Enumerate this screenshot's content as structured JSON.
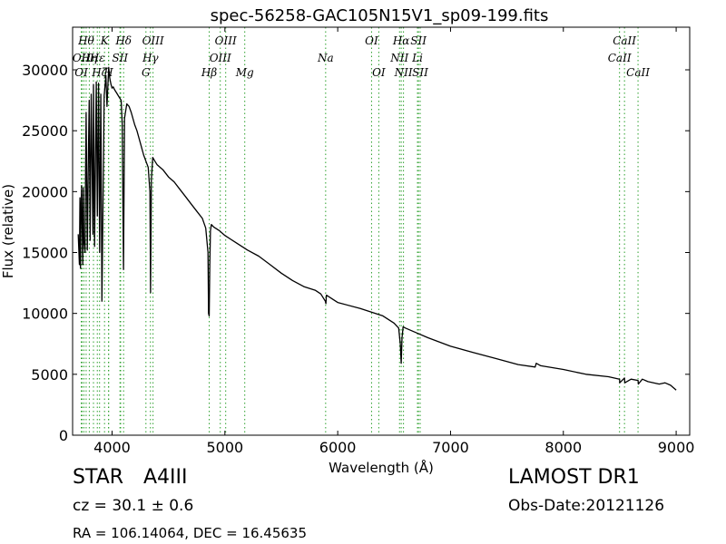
{
  "chart_data": {
    "type": "line",
    "title": "spec-56258-GAC105N15V1_sp09-199.fits",
    "xlabel": "Wavelength (Å)",
    "ylabel": "Flux (relative)",
    "xlim": [
      3650,
      9120
    ],
    "ylim": [
      0,
      33500
    ],
    "xticks": [
      4000,
      5000,
      6000,
      7000,
      8000,
      9000
    ],
    "yticks": [
      0,
      5000,
      10000,
      15000,
      20000,
      25000,
      30000
    ],
    "grid": false,
    "line_color": "#000000",
    "marker_color": "#2ca02c",
    "series": [
      {
        "x": [
          3700,
          3710,
          3715,
          3720,
          3725,
          3730,
          3740,
          3745,
          3750,
          3760,
          3765,
          3770,
          3780,
          3790,
          3797,
          3805,
          3815,
          3830,
          3835,
          3845,
          3860,
          3870,
          3880,
          3890,
          3900,
          3910,
          3930,
          3945,
          3955,
          3970,
          3980,
          3990,
          4000,
          4010,
          4020,
          4040,
          4060,
          4080,
          4090,
          4101,
          4110,
          4130,
          4150,
          4170,
          4200,
          4220,
          4250,
          4280,
          4300,
          4320,
          4335,
          4341,
          4348,
          4360,
          4380,
          4400,
          4450,
          4500,
          4550,
          4600,
          4650,
          4700,
          4750,
          4800,
          4830,
          4850,
          4855,
          4861,
          4866,
          4872,
          4880,
          4900,
          4950,
          5000,
          5100,
          5200,
          5300,
          5400,
          5500,
          5600,
          5700,
          5800,
          5850,
          5890,
          5895,
          5900,
          5950,
          6000,
          6200,
          6400,
          6500,
          6540,
          6555,
          6563,
          6570,
          6580,
          6600,
          6700,
          6800,
          7000,
          7200,
          7400,
          7600,
          7750,
          7760,
          7800,
          8000,
          8200,
          8400,
          8498,
          8500,
          8542,
          8545,
          8600,
          8662,
          8665,
          8700,
          8750,
          8800,
          8850,
          8900,
          8950,
          9000
        ],
        "y": [
          16500,
          14000,
          19500,
          13700,
          18500,
          20500,
          14000,
          20300,
          16000,
          15000,
          21500,
          26500,
          15200,
          23000,
          27500,
          16000,
          28000,
          16500,
          28800,
          15500,
          29000,
          18000,
          28900,
          15000,
          28000,
          11000,
          27900,
          29500,
          27000,
          30200,
          29300,
          28800,
          28500,
          28600,
          28400,
          28100,
          27800,
          27500,
          25500,
          13600,
          26000,
          27200,
          27000,
          26500,
          25500,
          25000,
          24000,
          23000,
          22500,
          22000,
          20000,
          11700,
          21000,
          22800,
          22500,
          22200,
          21800,
          21200,
          20800,
          20200,
          19600,
          19000,
          18400,
          17800,
          17000,
          15000,
          10000,
          9800,
          14000,
          16800,
          17300,
          17100,
          16800,
          16400,
          15800,
          15200,
          14700,
          14000,
          13300,
          12700,
          12200,
          11900,
          11600,
          11000,
          10800,
          11500,
          11200,
          10900,
          10400,
          9800,
          9200,
          8800,
          7500,
          5900,
          8000,
          8900,
          8800,
          8400,
          8000,
          7300,
          6800,
          6300,
          5800,
          5600,
          5900,
          5700,
          5400,
          5000,
          4800,
          4600,
          4300,
          4700,
          4300,
          4600,
          4500,
          4200,
          4600,
          4400,
          4300,
          4200,
          4300,
          4100,
          3700
        ]
      }
    ],
    "line_markers": [
      {
        "x": 3727,
        "labels": [
          {
            "text": "OII",
            "row": 1
          },
          {
            "text": "OI",
            "row": 2
          }
        ]
      },
      {
        "x": 3734
      },
      {
        "x": 3750
      },
      {
        "x": 3770,
        "labels": [
          {
            "text": "Hθ",
            "row": 0
          }
        ]
      },
      {
        "x": 3798,
        "labels": [
          {
            "text": "Hη",
            "row": 1
          }
        ]
      },
      {
        "x": 3835
      },
      {
        "x": 3869,
        "labels": [
          {
            "text": "Hε",
            "row": 1
          }
        ]
      },
      {
        "x": 3889,
        "labels": [
          {
            "text": "Hζ",
            "row": 2
          }
        ]
      },
      {
        "x": 3933,
        "labels": [
          {
            "text": "K",
            "row": 0
          }
        ]
      },
      {
        "x": 3968,
        "labels": [
          {
            "text": "H",
            "row": 2
          }
        ]
      },
      {
        "x": 3970
      },
      {
        "x": 4070,
        "labels": [
          {
            "text": "SII",
            "row": 1
          }
        ]
      },
      {
        "x": 4076
      },
      {
        "x": 4102,
        "labels": [
          {
            "text": "Hδ",
            "row": 0
          }
        ]
      },
      {
        "x": 4300,
        "labels": [
          {
            "text": "G",
            "row": 2
          }
        ]
      },
      {
        "x": 4340,
        "labels": [
          {
            "text": "Hγ",
            "row": 1
          }
        ]
      },
      {
        "x": 4363,
        "labels": [
          {
            "text": "OIII",
            "row": 0
          }
        ]
      },
      {
        "x": 4861,
        "labels": [
          {
            "text": "Hβ",
            "row": 2
          }
        ]
      },
      {
        "x": 4959,
        "labels": [
          {
            "text": "OIII",
            "row": 1
          }
        ]
      },
      {
        "x": 5007,
        "labels": [
          {
            "text": "OIII",
            "row": 0
          }
        ]
      },
      {
        "x": 5176,
        "labels": [
          {
            "text": "Mg",
            "row": 2
          }
        ]
      },
      {
        "x": 5893,
        "labels": [
          {
            "text": "Na",
            "row": 1
          }
        ]
      },
      {
        "x": 6300,
        "labels": [
          {
            "text": "OI",
            "row": 0
          }
        ]
      },
      {
        "x": 6364,
        "labels": [
          {
            "text": "OI",
            "row": 2
          }
        ]
      },
      {
        "x": 6548,
        "labels": [
          {
            "text": "NII",
            "row": 1
          }
        ]
      },
      {
        "x": 6563,
        "labels": [
          {
            "text": "Hα",
            "row": 0
          }
        ]
      },
      {
        "x": 6583,
        "labels": [
          {
            "text": "NII",
            "row": 2
          }
        ]
      },
      {
        "x": 6707,
        "labels": [
          {
            "text": "Li",
            "row": 1
          }
        ]
      },
      {
        "x": 6716,
        "labels": [
          {
            "text": "SII",
            "row": 0
          }
        ]
      },
      {
        "x": 6731,
        "labels": [
          {
            "text": "SII",
            "row": 2
          }
        ]
      },
      {
        "x": 8498,
        "labels": [
          {
            "text": "CaII",
            "row": 1
          }
        ]
      },
      {
        "x": 8542,
        "labels": [
          {
            "text": "CaII",
            "row": 0
          }
        ]
      },
      {
        "x": 8662,
        "labels": [
          {
            "text": "CaII",
            "row": 2
          }
        ]
      }
    ]
  },
  "footer": {
    "object_type": "STAR",
    "subclass": "A4III",
    "redshift": "cz = 30.1 ± 0.6",
    "survey": "LAMOST DR1",
    "obs_date": "Obs-Date:20121126",
    "coords": "RA = 106.14064, DEC = 16.45635"
  }
}
